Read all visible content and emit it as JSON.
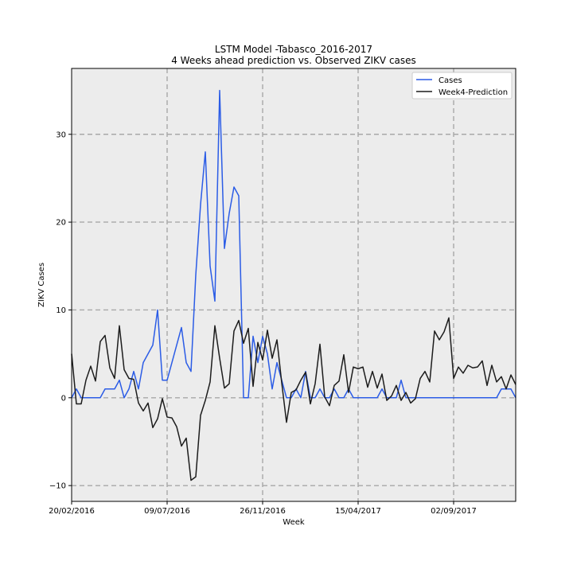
{
  "chart_data": {
    "type": "line",
    "title_line1": "LSTM Model -Tabasco_2016-2017",
    "title_line2": "4 Weeks ahead prediction vs. Observed ZIKV cases",
    "xlabel": "Week",
    "ylabel": "ZIKV Cases",
    "ylim": [
      -11.8,
      37.5
    ],
    "xlim": [
      0,
      93
    ],
    "grid": true,
    "legend_position": "top-right",
    "x_ticks": [
      {
        "pos": 0,
        "label": "20/02/2016"
      },
      {
        "pos": 20,
        "label": "09/07/2016"
      },
      {
        "pos": 40,
        "label": "26/11/2016"
      },
      {
        "pos": 60,
        "label": "15/04/2017"
      },
      {
        "pos": 80,
        "label": "02/09/2017"
      }
    ],
    "y_ticks": [
      {
        "value": -10,
        "label": "−10"
      },
      {
        "value": 0,
        "label": "0"
      },
      {
        "value": 10,
        "label": "10"
      },
      {
        "value": 20,
        "label": "20"
      },
      {
        "value": 30,
        "label": "30"
      }
    ],
    "series": [
      {
        "name": "Cases",
        "color": "#2b5ce6",
        "values": [
          0,
          1,
          0,
          0,
          0,
          0,
          0,
          1,
          1,
          1,
          2,
          0,
          1,
          3,
          1,
          4,
          5,
          6,
          10,
          2,
          2,
          4,
          6,
          8,
          4,
          3,
          14,
          22,
          28,
          15,
          11,
          35,
          17,
          21,
          24,
          23,
          0,
          0,
          7,
          4,
          7,
          5,
          1,
          4,
          2,
          0,
          0,
          1,
          0,
          3,
          0,
          0,
          1,
          0,
          0,
          1,
          0,
          0,
          1,
          0,
          0,
          0,
          0,
          0,
          0,
          1,
          0,
          0,
          0,
          2,
          0,
          0,
          0,
          0,
          0,
          0,
          0,
          0,
          0,
          0,
          0,
          0,
          0,
          0,
          0,
          0,
          0,
          0,
          0,
          0,
          1,
          1,
          1,
          0
        ]
      },
      {
        "name": "Week4-Prediction",
        "color": "#1c1c1c",
        "values": [
          5,
          -0.7,
          -0.7,
          2,
          3.6,
          1.9,
          6.4,
          7.1,
          3.4,
          2.2,
          8.2,
          3.2,
          2.2,
          2.1,
          -0.6,
          -1.5,
          -0.6,
          -3.4,
          -2.4,
          -0.1,
          -2.2,
          -2.3,
          -3.3,
          -5.5,
          -4.6,
          -9.4,
          -9,
          -2,
          -0.3,
          1.8,
          8.2,
          4.5,
          1.1,
          1.6,
          7.6,
          8.8,
          6.2,
          7.9,
          1.3,
          6.3,
          4.3,
          7.7,
          4.5,
          6.6,
          1.7,
          -2.8,
          0.6,
          0.9,
          2,
          2.9,
          -0.7,
          1.6,
          6.1,
          0.1,
          -0.9,
          1.4,
          1.9,
          4.9,
          0.6,
          3.5,
          3.3,
          3.5,
          1.2,
          3,
          1.1,
          2.7,
          -0.3,
          0.2,
          1.4,
          -0.3,
          0.6,
          -0.6,
          -0.1,
          2.2,
          3,
          1.8,
          7.6,
          6.6,
          7.5,
          9.1,
          2.2,
          3.5,
          2.8,
          3.7,
          3.4,
          3.5,
          4.2,
          1.4,
          3.7,
          1.8,
          2.4,
          1,
          2.6,
          1.5
        ]
      }
    ]
  }
}
